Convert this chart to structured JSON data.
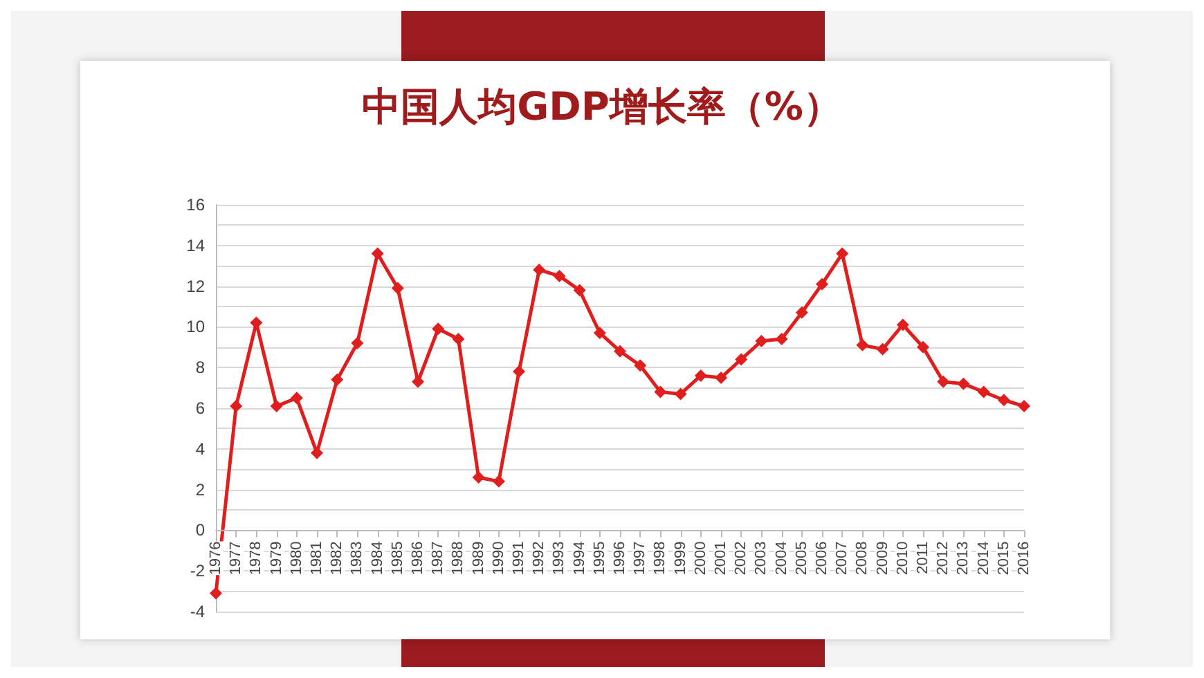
{
  "chart_data": {
    "type": "line",
    "title": "中国人均GDP增长率（%）",
    "categories": [
      "1976",
      "1977",
      "1978",
      "1979",
      "1980",
      "1981",
      "1982",
      "1983",
      "1984",
      "1985",
      "1986",
      "1987",
      "1988",
      "1989",
      "1990",
      "1991",
      "1992",
      "1993",
      "1994",
      "1995",
      "1996",
      "1997",
      "1998",
      "1999",
      "2000",
      "2001",
      "2002",
      "2003",
      "2004",
      "2005",
      "2006",
      "2007",
      "2008",
      "2009",
      "2010",
      "2011",
      "2012",
      "2013",
      "2014",
      "2015",
      "2016"
    ],
    "series": [
      {
        "color": "#e01e1e",
        "values": [
          -3.1,
          6.1,
          10.2,
          6.1,
          6.5,
          3.8,
          7.4,
          9.2,
          13.6,
          11.9,
          7.3,
          9.9,
          9.4,
          2.6,
          2.4,
          7.8,
          12.8,
          12.5,
          11.8,
          9.7,
          8.8,
          8.1,
          6.8,
          6.7,
          7.6,
          7.5,
          8.4,
          9.3,
          9.4,
          10.7,
          12.1,
          13.6,
          9.1,
          8.9,
          10.1,
          9.0,
          7.3,
          7.2,
          6.8,
          6.4,
          6.1
        ]
      }
    ],
    "ylim": [
      -4,
      16
    ],
    "yticks": [
      -4,
      {
        "value": -3,
        "label": null
      },
      -2,
      {
        "value": -1,
        "label": null
      },
      0,
      {
        "value": 1,
        "label": null
      },
      2,
      {
        "value": 3,
        "label": null
      },
      4,
      {
        "value": 5,
        "label": null
      },
      6,
      {
        "value": 7,
        "label": null
      },
      8,
      {
        "value": 9,
        "label": null
      },
      10,
      {
        "value": 11,
        "label": null
      },
      12,
      {
        "value": 13,
        "label": null
      },
      14,
      {
        "value": 15,
        "label": null
      },
      16
    ],
    "grid": "y",
    "marker": "diamond",
    "line_style": "solid"
  }
}
